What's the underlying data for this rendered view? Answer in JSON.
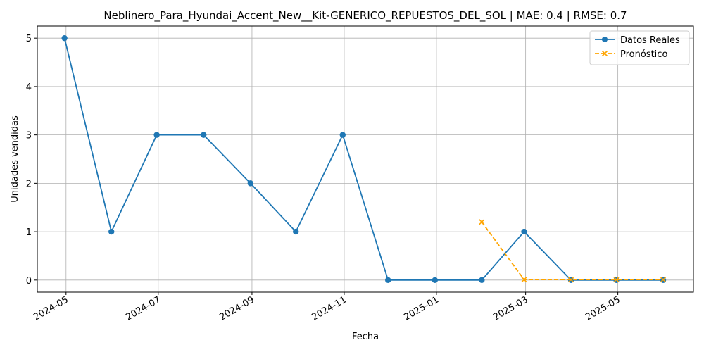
{
  "chart_data": {
    "type": "line",
    "title": "Neblinero_Para_Hyundai_Accent_New__Kit-GENERICO_REPUESTOS_DEL_SOL | MAE: 0.4 | RMSE: 0.7",
    "xlabel": "Fecha",
    "ylabel": "Unidades vendidas",
    "x_ticks": [
      "2024-05",
      "2024-07",
      "2024-09",
      "2024-11",
      "2025-01",
      "2025-03",
      "2025-05"
    ],
    "y_ticks": [
      "0",
      "1",
      "2",
      "3",
      "4",
      "5"
    ],
    "ylim": [
      -0.25,
      5.25
    ],
    "xlim": [
      "2024-04-12",
      "2025-06-20"
    ],
    "grid": true,
    "legend_position": "top-right",
    "series": [
      {
        "name": "Datos Reales",
        "color": "#1f77b4",
        "style": "solid",
        "marker": "circle",
        "x": [
          "2024-04-30",
          "2024-05-31",
          "2024-06-30",
          "2024-07-31",
          "2024-08-31",
          "2024-09-30",
          "2024-10-31",
          "2024-11-30",
          "2024-12-31",
          "2025-01-31",
          "2025-02-28",
          "2025-03-31",
          "2025-04-30",
          "2025-05-31"
        ],
        "values": [
          5,
          1,
          3,
          3,
          2,
          1,
          3,
          0,
          0,
          0,
          1,
          0,
          0,
          0
        ]
      },
      {
        "name": "Pronóstico",
        "color": "#ffa500",
        "style": "dashed",
        "marker": "x",
        "x": [
          "2025-01-31",
          "2025-02-28",
          "2025-03-31",
          "2025-04-30",
          "2025-05-31"
        ],
        "values": [
          1.2,
          0.01,
          0.01,
          0.01,
          0.01
        ]
      }
    ]
  }
}
